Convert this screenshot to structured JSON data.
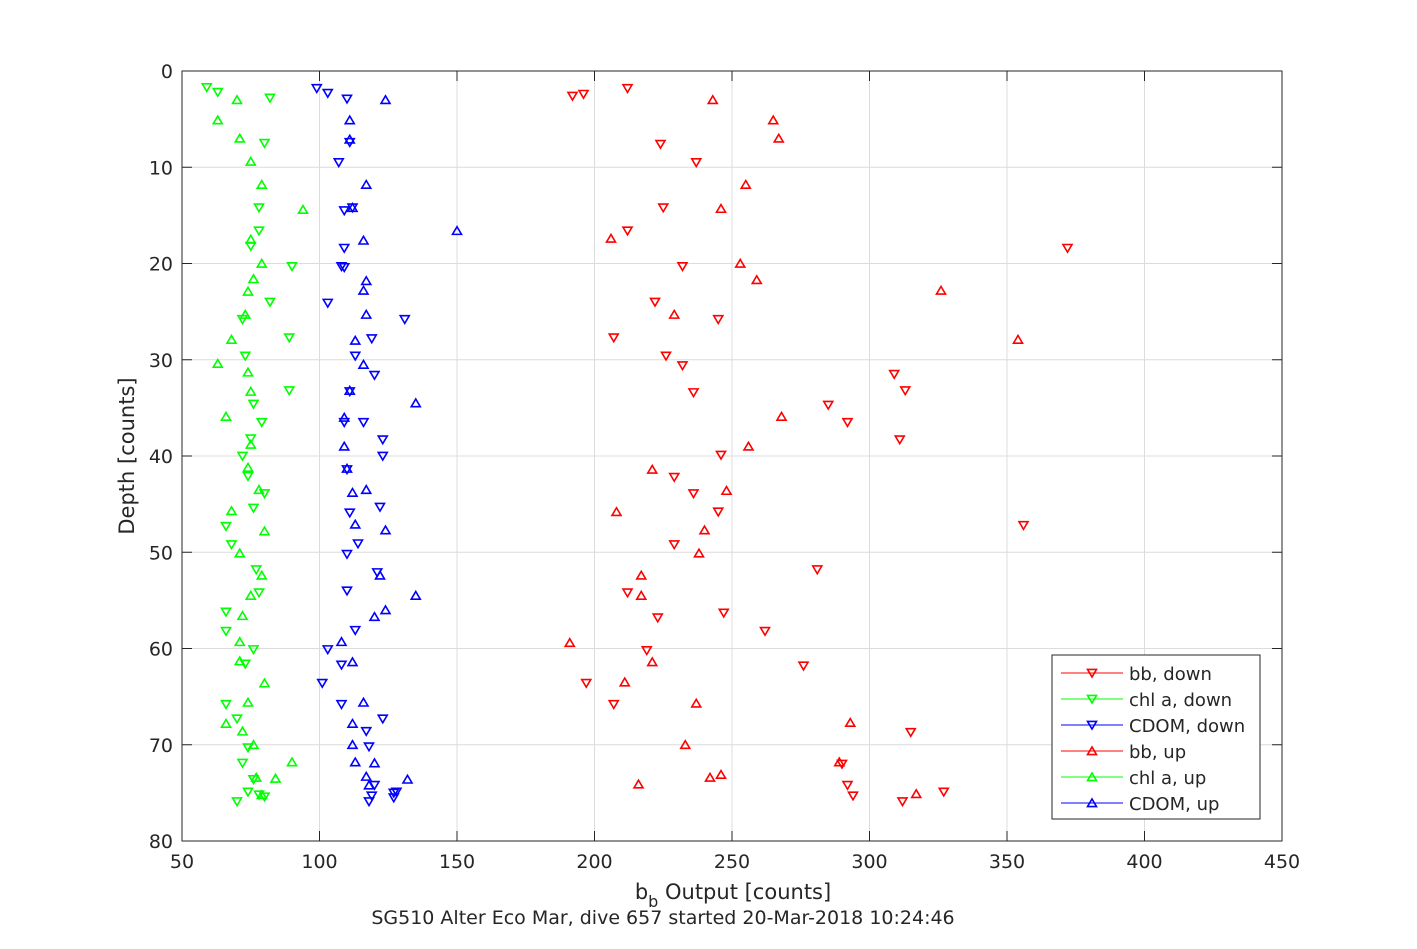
{
  "chart_data": {
    "type": "scatter",
    "title": "",
    "xlabel": "b",
    "xlabel_sub": "b",
    "xlabel_rest": " Output [counts]",
    "ylabel": "Depth [counts]",
    "caption": "SG510 Alter Eco Mar, dive 657 started 20-Mar-2018 10:24:46",
    "xlim": [
      50,
      450
    ],
    "ylim": [
      0,
      80
    ],
    "y_reversed": true,
    "grid": true,
    "legend_position": "bottom-right",
    "x_ticks": [
      50,
      100,
      150,
      200,
      250,
      300,
      350,
      400,
      450
    ],
    "y_ticks": [
      0,
      10,
      20,
      30,
      40,
      50,
      60,
      70,
      80
    ],
    "series": [
      {
        "name": "bb, down",
        "color": "#ff0000",
        "marker": "triangle-down",
        "points": [
          [
            196,
            2.4
          ],
          [
            192,
            2.6
          ],
          [
            212,
            1.8
          ],
          [
            224,
            7.6
          ],
          [
            237,
            9.5
          ],
          [
            225,
            14.2
          ],
          [
            212,
            16.6
          ],
          [
            232,
            20.3
          ],
          [
            222,
            24
          ],
          [
            245,
            25.8
          ],
          [
            207,
            27.7
          ],
          [
            226,
            29.6
          ],
          [
            232,
            30.6
          ],
          [
            236,
            33.4
          ],
          [
            246,
            39.9
          ],
          [
            229,
            42.2
          ],
          [
            236,
            43.9
          ],
          [
            245,
            45.8
          ],
          [
            229,
            49.2
          ],
          [
            281,
            51.8
          ],
          [
            212,
            54.2
          ],
          [
            223,
            56.8
          ],
          [
            247,
            56.3
          ],
          [
            262,
            58.2
          ],
          [
            276,
            61.8
          ],
          [
            197,
            63.6
          ],
          [
            207,
            65.8
          ],
          [
            315,
            68.7
          ],
          [
            290,
            72
          ],
          [
            292,
            74.2
          ],
          [
            294,
            75.3
          ],
          [
            312,
            75.9
          ],
          [
            327,
            74.9
          ],
          [
            372,
            18.4
          ],
          [
            356,
            47.2
          ],
          [
            309,
            31.5
          ],
          [
            313,
            33.2
          ],
          [
            285,
            34.7
          ],
          [
            292,
            36.5
          ],
          [
            311,
            38.3
          ],
          [
            219,
            60.2
          ]
        ]
      },
      {
        "name": "chl a, down",
        "color": "#00ff00",
        "marker": "triangle-down",
        "points": [
          [
            59,
            1.7
          ],
          [
            63,
            2.2
          ],
          [
            82,
            2.8
          ],
          [
            80,
            7.5
          ],
          [
            78,
            14.2
          ],
          [
            78,
            16.6
          ],
          [
            75,
            18.2
          ],
          [
            90,
            20.3
          ],
          [
            82,
            24
          ],
          [
            72,
            25.8
          ],
          [
            89,
            27.7
          ],
          [
            73,
            29.6
          ],
          [
            89,
            33.2
          ],
          [
            76,
            34.6
          ],
          [
            79,
            36.5
          ],
          [
            75,
            38.2
          ],
          [
            72,
            40
          ],
          [
            74,
            42.1
          ],
          [
            80,
            43.9
          ],
          [
            76,
            45.4
          ],
          [
            66,
            47.3
          ],
          [
            68,
            49.2
          ],
          [
            77,
            51.8
          ],
          [
            78,
            54.2
          ],
          [
            66,
            56.2
          ],
          [
            66,
            58.2
          ],
          [
            76,
            60.1
          ],
          [
            73,
            61.6
          ],
          [
            66,
            65.8
          ],
          [
            70,
            67.3
          ],
          [
            74,
            70.3
          ],
          [
            72,
            71.9
          ],
          [
            76,
            73.6
          ],
          [
            74,
            74.9
          ],
          [
            78,
            75.2
          ],
          [
            70,
            75.9
          ],
          [
            80,
            75.4
          ]
        ]
      },
      {
        "name": "CDOM, down",
        "color": "#0000ff",
        "marker": "triangle-down",
        "points": [
          [
            99,
            1.8
          ],
          [
            103,
            2.3
          ],
          [
            110,
            2.9
          ],
          [
            111,
            7.4
          ],
          [
            107,
            9.5
          ],
          [
            112,
            14.2
          ],
          [
            109,
            14.5
          ],
          [
            109,
            18.4
          ],
          [
            108,
            20.3
          ],
          [
            109,
            20.4
          ],
          [
            103,
            24.1
          ],
          [
            131,
            25.8
          ],
          [
            119,
            27.8
          ],
          [
            113,
            29.6
          ],
          [
            120,
            31.6
          ],
          [
            111,
            33.3
          ],
          [
            116,
            36.5
          ],
          [
            123,
            38.3
          ],
          [
            123,
            40
          ],
          [
            110,
            41.4
          ],
          [
            111,
            45.9
          ],
          [
            110,
            50.2
          ],
          [
            113,
            58.1
          ],
          [
            103,
            60.1
          ],
          [
            108,
            61.7
          ],
          [
            101,
            63.6
          ],
          [
            108,
            65.8
          ],
          [
            123,
            67.3
          ],
          [
            117,
            68.6
          ],
          [
            118,
            70.2
          ],
          [
            120,
            74.2
          ],
          [
            119,
            75.3
          ],
          [
            118,
            75.9
          ],
          [
            127,
            75
          ],
          [
            127,
            75.5
          ],
          [
            128,
            74.9
          ],
          [
            114,
            49.1
          ],
          [
            110,
            54
          ],
          [
            121,
            52.1
          ],
          [
            109,
            36.5
          ],
          [
            122,
            45.3
          ]
        ]
      },
      {
        "name": "bb, up",
        "color": "#ff0000",
        "marker": "triangle-up",
        "points": [
          [
            243,
            3
          ],
          [
            265,
            5.1
          ],
          [
            267,
            7
          ],
          [
            255,
            11.8
          ],
          [
            246,
            14.3
          ],
          [
            206,
            17.4
          ],
          [
            253,
            20
          ],
          [
            259,
            21.7
          ],
          [
            326,
            22.8
          ],
          [
            229,
            25.3
          ],
          [
            354,
            27.9
          ],
          [
            268,
            35.9
          ],
          [
            256,
            39
          ],
          [
            221,
            41.4
          ],
          [
            248,
            43.6
          ],
          [
            208,
            45.8
          ],
          [
            240,
            47.7
          ],
          [
            238,
            50.1
          ],
          [
            217,
            52.4
          ],
          [
            217,
            54.5
          ],
          [
            191,
            59.4
          ],
          [
            221,
            61.4
          ],
          [
            211,
            63.5
          ],
          [
            237,
            65.7
          ],
          [
            293,
            67.7
          ],
          [
            233,
            70
          ],
          [
            289,
            71.8
          ],
          [
            242,
            73.4
          ],
          [
            246,
            73.1
          ],
          [
            216,
            74.1
          ],
          [
            317,
            75.1
          ]
        ]
      },
      {
        "name": "chl a, up",
        "color": "#00ff00",
        "marker": "triangle-up",
        "points": [
          [
            70,
            3
          ],
          [
            63,
            5.1
          ],
          [
            71,
            7
          ],
          [
            75,
            9.4
          ],
          [
            79,
            11.8
          ],
          [
            94,
            14.4
          ],
          [
            75,
            17.5
          ],
          [
            79,
            20
          ],
          [
            76,
            21.6
          ],
          [
            74,
            22.9
          ],
          [
            73,
            25.3
          ],
          [
            68,
            27.9
          ],
          [
            63,
            30.4
          ],
          [
            74,
            31.3
          ],
          [
            75,
            33.3
          ],
          [
            66,
            35.9
          ],
          [
            75,
            38.8
          ],
          [
            74,
            41.2
          ],
          [
            78,
            43.5
          ],
          [
            68,
            45.7
          ],
          [
            80,
            47.8
          ],
          [
            71,
            50.1
          ],
          [
            79,
            52.4
          ],
          [
            75,
            54.5
          ],
          [
            72,
            56.6
          ],
          [
            71,
            59.3
          ],
          [
            71,
            61.3
          ],
          [
            80,
            63.6
          ],
          [
            74,
            65.6
          ],
          [
            66,
            67.8
          ],
          [
            72,
            68.6
          ],
          [
            76,
            70
          ],
          [
            90,
            71.8
          ],
          [
            77,
            73.4
          ],
          [
            84,
            73.5
          ],
          [
            79,
            75.2
          ]
        ]
      },
      {
        "name": "CDOM, up",
        "color": "#0000ff",
        "marker": "triangle-up",
        "points": [
          [
            124,
            3
          ],
          [
            111,
            5.1
          ],
          [
            111,
            7.1
          ],
          [
            117,
            11.8
          ],
          [
            112,
            14.2
          ],
          [
            150,
            16.6
          ],
          [
            116,
            17.6
          ],
          [
            117,
            21.8
          ],
          [
            116,
            22.8
          ],
          [
            117,
            25.3
          ],
          [
            113,
            28
          ],
          [
            116,
            30.5
          ],
          [
            111,
            33.2
          ],
          [
            135,
            34.5
          ],
          [
            109,
            36
          ],
          [
            109,
            39
          ],
          [
            110,
            41.3
          ],
          [
            112,
            43.8
          ],
          [
            117,
            43.5
          ],
          [
            113,
            47.1
          ],
          [
            124,
            47.7
          ],
          [
            122,
            52.4
          ],
          [
            135,
            54.5
          ],
          [
            120,
            56.7
          ],
          [
            124,
            56
          ],
          [
            108,
            59.3
          ],
          [
            112,
            61.4
          ],
          [
            116,
            65.6
          ],
          [
            112,
            67.8
          ],
          [
            112,
            70
          ],
          [
            120,
            71.9
          ],
          [
            113,
            71.8
          ],
          [
            117,
            73.3
          ],
          [
            132,
            73.6
          ],
          [
            118,
            74.2
          ]
        ]
      }
    ]
  }
}
